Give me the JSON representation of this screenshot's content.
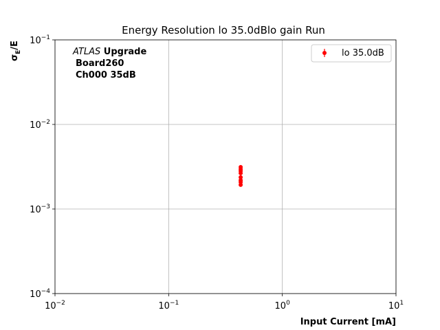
{
  "chart_data": {
    "type": "scatter",
    "title": "Energy Resolution lo 35.0dBlo gain Run",
    "x_label": "Input Current [mA]",
    "y_label": "σE/E",
    "x_log": true,
    "y_log": true,
    "grid": true,
    "legend_position": "upper right",
    "annotation_lines": [
      "ATLAS Upgrade",
      "Board260",
      "Ch000 35dB"
    ],
    "xlim": [
      0.01,
      10
    ],
    "ylim": [
      0.0001,
      0.1
    ],
    "xticks": [
      {
        "value": 0.01,
        "label": "10−2"
      },
      {
        "value": 0.1,
        "label": "10−1"
      },
      {
        "value": 1,
        "label": "100"
      },
      {
        "value": 10,
        "label": "101"
      }
    ],
    "yticks": [
      {
        "value": 0.0001,
        "label": "10−4"
      },
      {
        "value": 0.001,
        "label": "10−3"
      },
      {
        "value": 0.01,
        "label": "10−2"
      },
      {
        "value": 0.1,
        "label": "10−1"
      }
    ],
    "series": [
      {
        "name": "lo 35.0dB",
        "color": "#ff0000",
        "x": [
          0.43,
          0.43,
          0.43,
          0.43,
          0.43,
          0.43,
          0.43,
          0.43
        ],
        "values": [
          0.00313,
          0.00296,
          0.00265,
          0.00237,
          0.00219,
          0.00208,
          0.00193,
          0.00282
        ]
      }
    ]
  }
}
